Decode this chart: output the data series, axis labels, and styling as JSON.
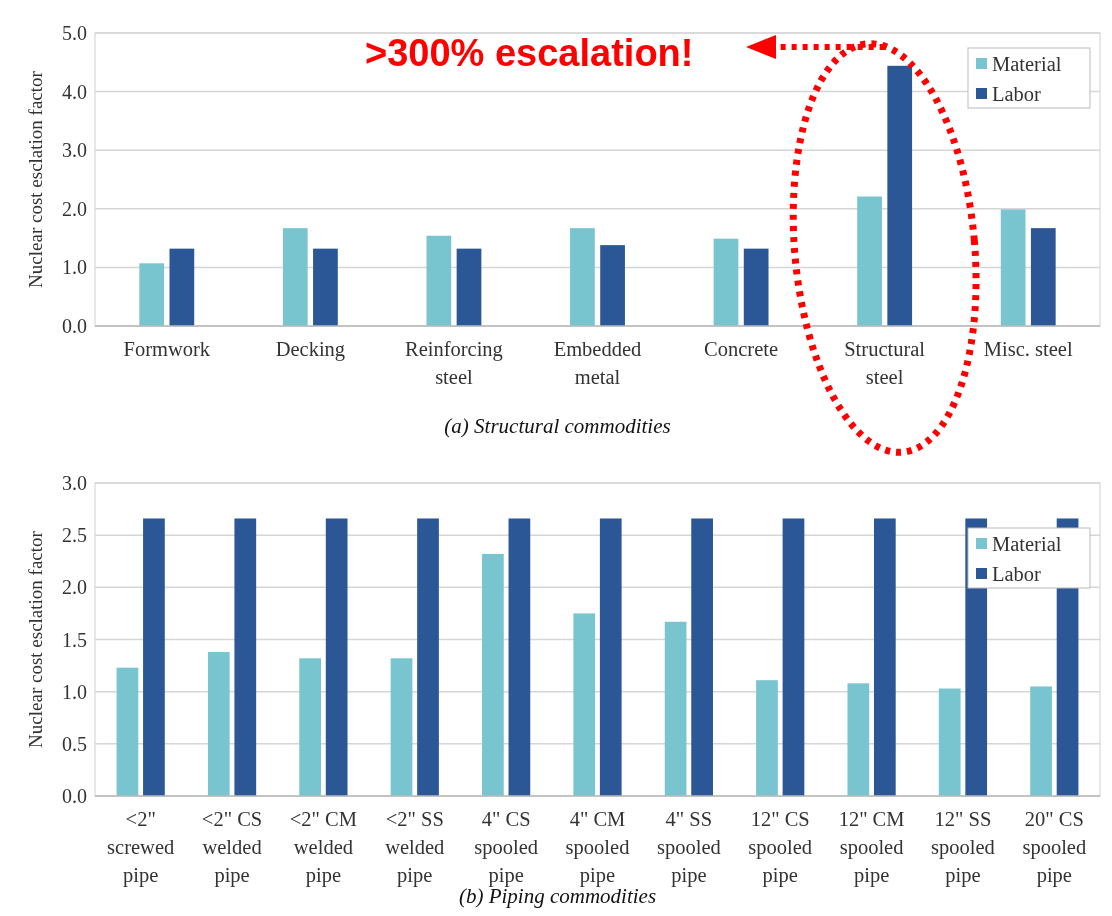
{
  "chart_data": [
    {
      "type": "bar",
      "title": "(a)  Structural commodities",
      "ylabel": "Nuclear cost esclation factor",
      "categories": [
        "Formwork",
        "Decking",
        "Reinforcing steel",
        "Embedded metal",
        "Concrete",
        "Structural steel",
        "Misc. steel"
      ],
      "series": [
        {
          "name": "Material",
          "color": "#78c5d0",
          "values": [
            1.07,
            1.67,
            1.54,
            1.67,
            1.49,
            2.21,
            1.99
          ]
        },
        {
          "name": "Labor",
          "color": "#2b5797",
          "values": [
            1.32,
            1.32,
            1.32,
            1.38,
            1.32,
            4.44,
            1.67
          ]
        }
      ],
      "ylim": [
        0,
        5
      ],
      "yticks": [
        {
          "value": 0,
          "label": "0.0"
        },
        {
          "value": 1,
          "label": "1.0"
        },
        {
          "value": 2,
          "label": "2.0"
        },
        {
          "value": 3,
          "label": "3.0"
        },
        {
          "value": 4,
          "label": "4.0"
        },
        {
          "value": 5,
          "label": "5.0"
        }
      ],
      "grid": "y",
      "legend": "top right",
      "annotations": [
        ">300% escalation!"
      ]
    },
    {
      "type": "bar",
      "title": "(b)  Piping commodities",
      "ylabel": "Nuclear cost esclation factor",
      "categories": [
        "<2\" screwed pipe",
        "<2\" CS welded pipe",
        "<2\" CM welded pipe",
        "<2\" SS welded pipe",
        "4\" CS spooled pipe",
        "4\" CM spooled pipe",
        "4\" SS spooled pipe",
        "12\" CS spooled pipe",
        "12\" CM spooled pipe",
        "12\" SS spooled pipe",
        "20\" CS spooled pipe"
      ],
      "series": [
        {
          "name": "Material",
          "color": "#78c5d0",
          "values": [
            1.23,
            1.38,
            1.32,
            1.32,
            2.32,
            1.75,
            1.67,
            1.11,
            1.08,
            1.03,
            1.05
          ]
        },
        {
          "name": "Labor",
          "color": "#2b5797",
          "values": [
            2.66,
            2.66,
            2.66,
            2.66,
            2.66,
            2.66,
            2.66,
            2.66,
            2.66,
            2.66,
            2.66
          ]
        }
      ],
      "ylim": [
        0,
        3
      ],
      "yticks": [
        {
          "value": 0,
          "label": "0.0"
        },
        {
          "value": 0.5,
          "label": "0.5"
        },
        {
          "value": 1,
          "label": "1.0"
        },
        {
          "value": 1.5,
          "label": "1.5"
        },
        {
          "value": 2,
          "label": "2.0"
        },
        {
          "value": 2.5,
          "label": "2.5"
        },
        {
          "value": 3,
          "label": "3.0"
        }
      ],
      "grid": "y",
      "legend": "top right"
    }
  ]
}
